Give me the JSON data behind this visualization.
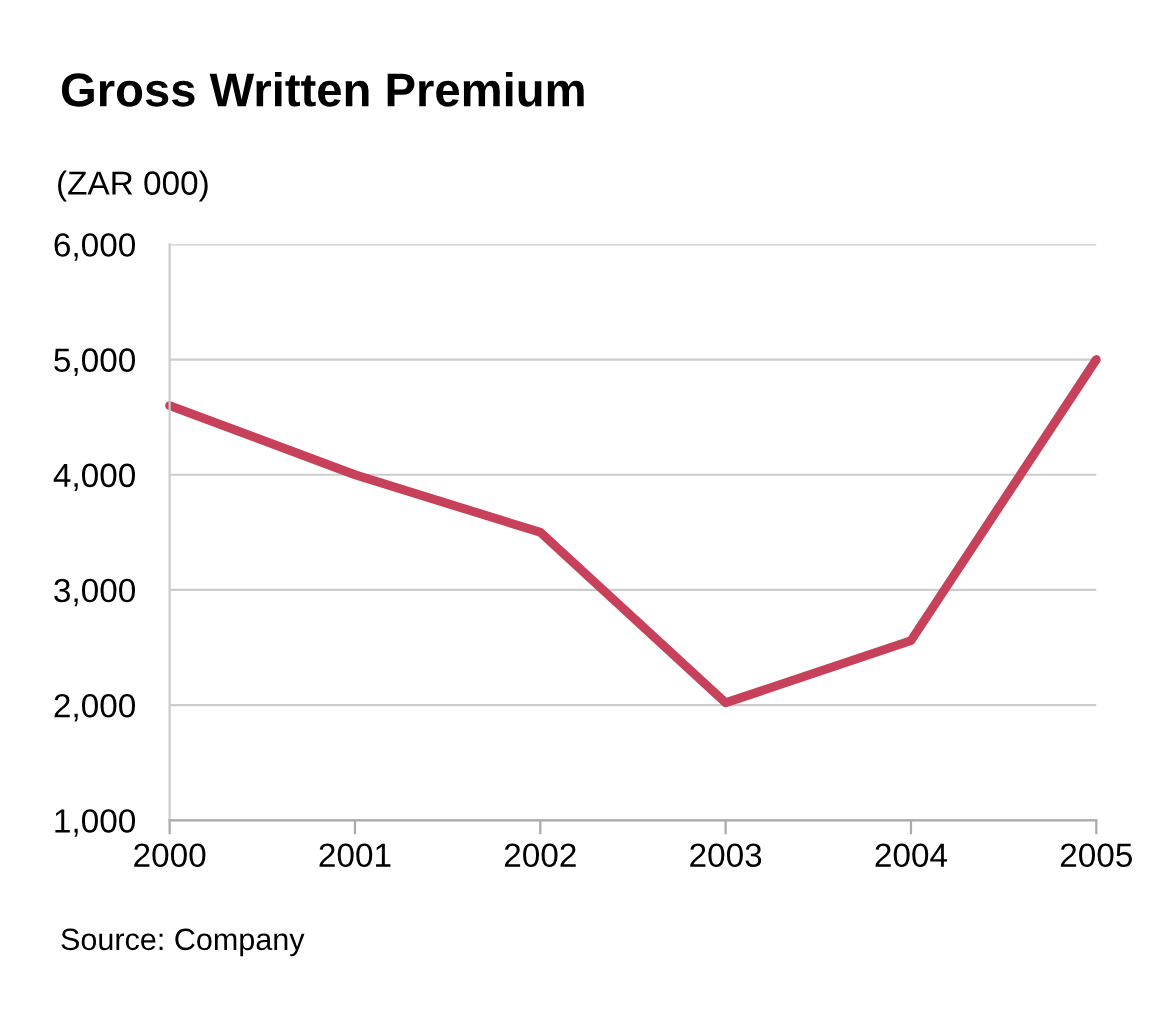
{
  "chart_data": {
    "type": "line",
    "title": "Gross Written Premium",
    "ylabel": "(ZAR 000)",
    "categories": [
      "2000",
      "2001",
      "2002",
      "2003",
      "2004",
      "2005"
    ],
    "series": [
      {
        "color": "#c8415a",
        "values": [
          4600,
          4000,
          3500,
          2020,
          2560,
          5000
        ]
      }
    ],
    "ylim": [
      1000,
      6000
    ],
    "yticks": [
      {
        "value": 1000,
        "label": "1,000"
      },
      {
        "value": 2000,
        "label": "2,000"
      },
      {
        "value": 3000,
        "label": "3,000"
      },
      {
        "value": 4000,
        "label": "4,000"
      },
      {
        "value": 5000,
        "label": "5,000"
      },
      {
        "value": 6000,
        "label": "6,000"
      }
    ],
    "grid": "y",
    "legend": false,
    "annotations": [
      "Source: Company"
    ]
  }
}
